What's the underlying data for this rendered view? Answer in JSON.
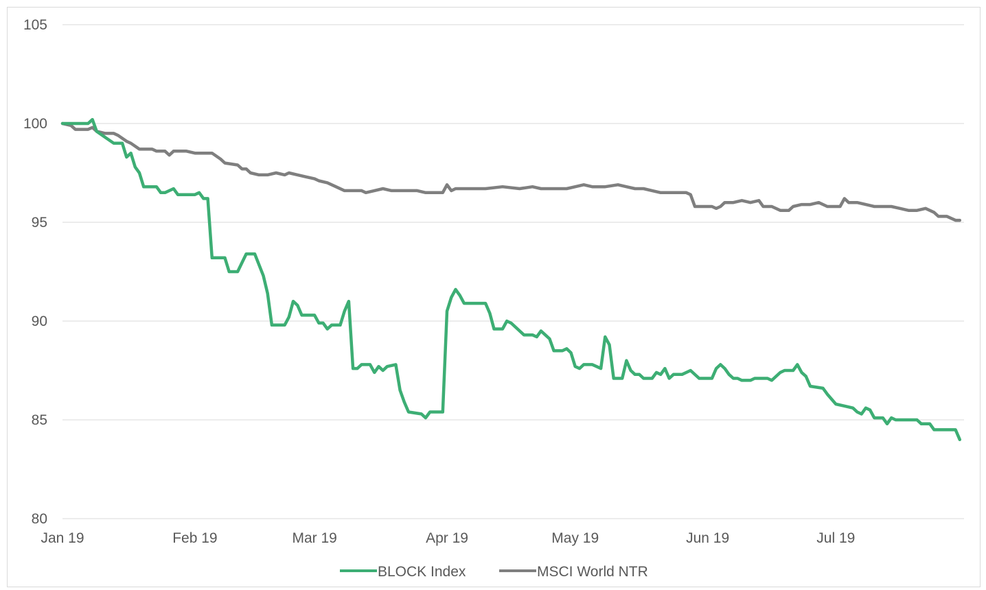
{
  "chart_data": {
    "type": "line",
    "title": "",
    "xlabel": "",
    "ylabel": "",
    "ylim": [
      80,
      105
    ],
    "yticks": [
      80,
      85,
      90,
      95,
      100,
      105
    ],
    "xlim": [
      "2019-01-01",
      "2019-07-31"
    ],
    "xticks": [
      {
        "date": "2019-01-01",
        "label": "Jan 19"
      },
      {
        "date": "2019-02-01",
        "label": "Feb 19"
      },
      {
        "date": "2019-03-01",
        "label": "Mar 19"
      },
      {
        "date": "2019-04-01",
        "label": "Apr 19"
      },
      {
        "date": "2019-05-01",
        "label": "May 19"
      },
      {
        "date": "2019-06-01",
        "label": "Jun 19"
      },
      {
        "date": "2019-07-01",
        "label": "Jul 19"
      }
    ],
    "grid": true,
    "legend": "bottom",
    "series": [
      {
        "name": "BLOCK Index",
        "color": "#3dae74",
        "points": [
          [
            "2019-01-01",
            100.0
          ],
          [
            "2019-01-04",
            100.0
          ],
          [
            "2019-01-07",
            100.0
          ],
          [
            "2019-01-08",
            100.2
          ],
          [
            "2019-01-09",
            99.6
          ],
          [
            "2019-01-11",
            99.3
          ],
          [
            "2019-01-13",
            99.0
          ],
          [
            "2019-01-15",
            99.0
          ],
          [
            "2019-01-16",
            98.3
          ],
          [
            "2019-01-17",
            98.5
          ],
          [
            "2019-01-18",
            97.8
          ],
          [
            "2019-01-19",
            97.5
          ],
          [
            "2019-01-20",
            96.8
          ],
          [
            "2019-01-23",
            96.8
          ],
          [
            "2019-01-24",
            96.5
          ],
          [
            "2019-01-25",
            96.5
          ],
          [
            "2019-01-27",
            96.7
          ],
          [
            "2019-01-28",
            96.4
          ],
          [
            "2019-02-01",
            96.4
          ],
          [
            "2019-02-02",
            96.5
          ],
          [
            "2019-02-03",
            96.2
          ],
          [
            "2019-02-04",
            96.2
          ],
          [
            "2019-02-05",
            93.2
          ],
          [
            "2019-02-08",
            93.2
          ],
          [
            "2019-02-09",
            92.5
          ],
          [
            "2019-02-11",
            92.5
          ],
          [
            "2019-02-13",
            93.4
          ],
          [
            "2019-02-15",
            93.4
          ],
          [
            "2019-02-17",
            92.3
          ],
          [
            "2019-02-18",
            91.4
          ],
          [
            "2019-02-19",
            89.8
          ],
          [
            "2019-02-22",
            89.8
          ],
          [
            "2019-02-23",
            90.2
          ],
          [
            "2019-02-24",
            91.0
          ],
          [
            "2019-02-25",
            90.8
          ],
          [
            "2019-02-26",
            90.3
          ],
          [
            "2019-03-01",
            90.3
          ],
          [
            "2019-03-02",
            89.9
          ],
          [
            "2019-03-03",
            89.9
          ],
          [
            "2019-03-04",
            89.6
          ],
          [
            "2019-03-05",
            89.8
          ],
          [
            "2019-03-07",
            89.8
          ],
          [
            "2019-03-08",
            90.5
          ],
          [
            "2019-03-09",
            91.0
          ],
          [
            "2019-03-10",
            87.6
          ],
          [
            "2019-03-11",
            87.6
          ],
          [
            "2019-03-12",
            87.8
          ],
          [
            "2019-03-14",
            87.8
          ],
          [
            "2019-03-15",
            87.4
          ],
          [
            "2019-03-16",
            87.7
          ],
          [
            "2019-03-17",
            87.5
          ],
          [
            "2019-03-18",
            87.7
          ],
          [
            "2019-03-20",
            87.8
          ],
          [
            "2019-03-21",
            86.5
          ],
          [
            "2019-03-22",
            85.9
          ],
          [
            "2019-03-23",
            85.4
          ],
          [
            "2019-03-26",
            85.3
          ],
          [
            "2019-03-27",
            85.1
          ],
          [
            "2019-03-28",
            85.4
          ],
          [
            "2019-03-31",
            85.4
          ],
          [
            "2019-04-01",
            90.5
          ],
          [
            "2019-04-02",
            91.2
          ],
          [
            "2019-04-03",
            91.6
          ],
          [
            "2019-04-04",
            91.3
          ],
          [
            "2019-04-05",
            90.9
          ],
          [
            "2019-04-10",
            90.9
          ],
          [
            "2019-04-11",
            90.4
          ],
          [
            "2019-04-12",
            89.6
          ],
          [
            "2019-04-14",
            89.6
          ],
          [
            "2019-04-15",
            90.0
          ],
          [
            "2019-04-16",
            89.9
          ],
          [
            "2019-04-18",
            89.5
          ],
          [
            "2019-04-19",
            89.3
          ],
          [
            "2019-04-21",
            89.3
          ],
          [
            "2019-04-22",
            89.2
          ],
          [
            "2019-04-23",
            89.5
          ],
          [
            "2019-04-24",
            89.3
          ],
          [
            "2019-04-25",
            89.1
          ],
          [
            "2019-04-26",
            88.5
          ],
          [
            "2019-04-28",
            88.5
          ],
          [
            "2019-04-29",
            88.6
          ],
          [
            "2019-04-30",
            88.4
          ],
          [
            "2019-05-01",
            87.7
          ],
          [
            "2019-05-02",
            87.6
          ],
          [
            "2019-05-03",
            87.8
          ],
          [
            "2019-05-05",
            87.8
          ],
          [
            "2019-05-06",
            87.7
          ],
          [
            "2019-05-07",
            87.6
          ],
          [
            "2019-05-08",
            89.2
          ],
          [
            "2019-05-09",
            88.8
          ],
          [
            "2019-05-10",
            87.1
          ],
          [
            "2019-05-12",
            87.1
          ],
          [
            "2019-05-13",
            88.0
          ],
          [
            "2019-05-14",
            87.5
          ],
          [
            "2019-05-15",
            87.3
          ],
          [
            "2019-05-16",
            87.3
          ],
          [
            "2019-05-17",
            87.1
          ],
          [
            "2019-05-19",
            87.1
          ],
          [
            "2019-05-20",
            87.4
          ],
          [
            "2019-05-21",
            87.3
          ],
          [
            "2019-05-22",
            87.6
          ],
          [
            "2019-05-23",
            87.1
          ],
          [
            "2019-05-24",
            87.3
          ],
          [
            "2019-05-26",
            87.3
          ],
          [
            "2019-05-28",
            87.5
          ],
          [
            "2019-05-30",
            87.1
          ],
          [
            "2019-06-02",
            87.1
          ],
          [
            "2019-06-03",
            87.6
          ],
          [
            "2019-06-04",
            87.8
          ],
          [
            "2019-06-05",
            87.6
          ],
          [
            "2019-06-06",
            87.3
          ],
          [
            "2019-06-07",
            87.1
          ],
          [
            "2019-06-08",
            87.1
          ],
          [
            "2019-06-09",
            87.0
          ],
          [
            "2019-06-11",
            87.0
          ],
          [
            "2019-06-12",
            87.1
          ],
          [
            "2019-06-15",
            87.1
          ],
          [
            "2019-06-16",
            87.0
          ],
          [
            "2019-06-17",
            87.2
          ],
          [
            "2019-06-18",
            87.4
          ],
          [
            "2019-06-19",
            87.5
          ],
          [
            "2019-06-21",
            87.5
          ],
          [
            "2019-06-22",
            87.8
          ],
          [
            "2019-06-23",
            87.4
          ],
          [
            "2019-06-24",
            87.2
          ],
          [
            "2019-06-25",
            86.7
          ],
          [
            "2019-06-28",
            86.6
          ],
          [
            "2019-06-29",
            86.3
          ],
          [
            "2019-07-01",
            85.8
          ],
          [
            "2019-07-03",
            85.7
          ],
          [
            "2019-07-05",
            85.6
          ],
          [
            "2019-07-06",
            85.4
          ],
          [
            "2019-07-07",
            85.3
          ],
          [
            "2019-07-08",
            85.6
          ],
          [
            "2019-07-09",
            85.5
          ],
          [
            "2019-07-10",
            85.1
          ],
          [
            "2019-07-12",
            85.1
          ],
          [
            "2019-07-13",
            84.8
          ],
          [
            "2019-07-14",
            85.1
          ],
          [
            "2019-07-15",
            85.0
          ],
          [
            "2019-07-20",
            85.0
          ],
          [
            "2019-07-21",
            84.8
          ],
          [
            "2019-07-23",
            84.8
          ],
          [
            "2019-07-24",
            84.5
          ],
          [
            "2019-07-29",
            84.5
          ],
          [
            "2019-07-30",
            84.0
          ]
        ]
      },
      {
        "name": "MSCI World NTR",
        "color": "#7f7f7f",
        "points": [
          [
            "2019-01-01",
            100.0
          ],
          [
            "2019-01-03",
            99.9
          ],
          [
            "2019-01-04",
            99.7
          ],
          [
            "2019-01-07",
            99.7
          ],
          [
            "2019-01-08",
            99.8
          ],
          [
            "2019-01-09",
            99.6
          ],
          [
            "2019-01-11",
            99.5
          ],
          [
            "2019-01-13",
            99.5
          ],
          [
            "2019-01-14",
            99.4
          ],
          [
            "2019-01-16",
            99.1
          ],
          [
            "2019-01-17",
            99.0
          ],
          [
            "2019-01-19",
            98.7
          ],
          [
            "2019-01-22",
            98.7
          ],
          [
            "2019-01-23",
            98.6
          ],
          [
            "2019-01-25",
            98.6
          ],
          [
            "2019-01-26",
            98.4
          ],
          [
            "2019-01-27",
            98.6
          ],
          [
            "2019-01-30",
            98.6
          ],
          [
            "2019-02-01",
            98.5
          ],
          [
            "2019-02-05",
            98.5
          ],
          [
            "2019-02-07",
            98.2
          ],
          [
            "2019-02-08",
            98.0
          ],
          [
            "2019-02-11",
            97.9
          ],
          [
            "2019-02-12",
            97.7
          ],
          [
            "2019-02-13",
            97.7
          ],
          [
            "2019-02-14",
            97.5
          ],
          [
            "2019-02-16",
            97.4
          ],
          [
            "2019-02-18",
            97.4
          ],
          [
            "2019-02-20",
            97.5
          ],
          [
            "2019-02-22",
            97.4
          ],
          [
            "2019-02-23",
            97.5
          ],
          [
            "2019-02-25",
            97.4
          ],
          [
            "2019-02-27",
            97.3
          ],
          [
            "2019-03-01",
            97.2
          ],
          [
            "2019-03-02",
            97.1
          ],
          [
            "2019-03-04",
            97.0
          ],
          [
            "2019-03-06",
            96.8
          ],
          [
            "2019-03-08",
            96.6
          ],
          [
            "2019-03-12",
            96.6
          ],
          [
            "2019-03-13",
            96.5
          ],
          [
            "2019-03-15",
            96.6
          ],
          [
            "2019-03-17",
            96.7
          ],
          [
            "2019-03-19",
            96.6
          ],
          [
            "2019-03-21",
            96.6
          ],
          [
            "2019-03-23",
            96.6
          ],
          [
            "2019-03-25",
            96.6
          ],
          [
            "2019-03-27",
            96.5
          ],
          [
            "2019-03-29",
            96.5
          ],
          [
            "2019-03-31",
            96.5
          ],
          [
            "2019-04-01",
            96.9
          ],
          [
            "2019-04-02",
            96.6
          ],
          [
            "2019-04-03",
            96.7
          ],
          [
            "2019-04-06",
            96.7
          ],
          [
            "2019-04-08",
            96.7
          ],
          [
            "2019-04-10",
            96.7
          ],
          [
            "2019-04-14",
            96.8
          ],
          [
            "2019-04-18",
            96.7
          ],
          [
            "2019-04-21",
            96.8
          ],
          [
            "2019-04-23",
            96.7
          ],
          [
            "2019-04-26",
            96.7
          ],
          [
            "2019-04-29",
            96.7
          ],
          [
            "2019-05-01",
            96.8
          ],
          [
            "2019-05-03",
            96.9
          ],
          [
            "2019-05-05",
            96.8
          ],
          [
            "2019-05-08",
            96.8
          ],
          [
            "2019-05-11",
            96.9
          ],
          [
            "2019-05-13",
            96.8
          ],
          [
            "2019-05-15",
            96.7
          ],
          [
            "2019-05-17",
            96.7
          ],
          [
            "2019-05-19",
            96.6
          ],
          [
            "2019-05-21",
            96.5
          ],
          [
            "2019-05-23",
            96.5
          ],
          [
            "2019-05-25",
            96.5
          ],
          [
            "2019-05-27",
            96.5
          ],
          [
            "2019-05-28",
            96.4
          ],
          [
            "2019-05-29",
            95.8
          ],
          [
            "2019-05-31",
            95.8
          ],
          [
            "2019-06-02",
            95.8
          ],
          [
            "2019-06-03",
            95.7
          ],
          [
            "2019-06-04",
            95.8
          ],
          [
            "2019-06-05",
            96.0
          ],
          [
            "2019-06-07",
            96.0
          ],
          [
            "2019-06-09",
            96.1
          ],
          [
            "2019-06-11",
            96.0
          ],
          [
            "2019-06-13",
            96.1
          ],
          [
            "2019-06-14",
            95.8
          ],
          [
            "2019-06-16",
            95.8
          ],
          [
            "2019-06-18",
            95.6
          ],
          [
            "2019-06-20",
            95.6
          ],
          [
            "2019-06-21",
            95.8
          ],
          [
            "2019-06-23",
            95.9
          ],
          [
            "2019-06-25",
            95.9
          ],
          [
            "2019-06-27",
            96.0
          ],
          [
            "2019-06-29",
            95.8
          ],
          [
            "2019-07-02",
            95.8
          ],
          [
            "2019-07-03",
            96.2
          ],
          [
            "2019-07-04",
            96.0
          ],
          [
            "2019-07-06",
            96.0
          ],
          [
            "2019-07-08",
            95.9
          ],
          [
            "2019-07-10",
            95.8
          ],
          [
            "2019-07-12",
            95.8
          ],
          [
            "2019-07-14",
            95.8
          ],
          [
            "2019-07-16",
            95.7
          ],
          [
            "2019-07-18",
            95.6
          ],
          [
            "2019-07-20",
            95.6
          ],
          [
            "2019-07-22",
            95.7
          ],
          [
            "2019-07-24",
            95.5
          ],
          [
            "2019-07-25",
            95.3
          ],
          [
            "2019-07-27",
            95.3
          ],
          [
            "2019-07-29",
            95.1
          ],
          [
            "2019-07-30",
            95.1
          ]
        ]
      }
    ]
  }
}
